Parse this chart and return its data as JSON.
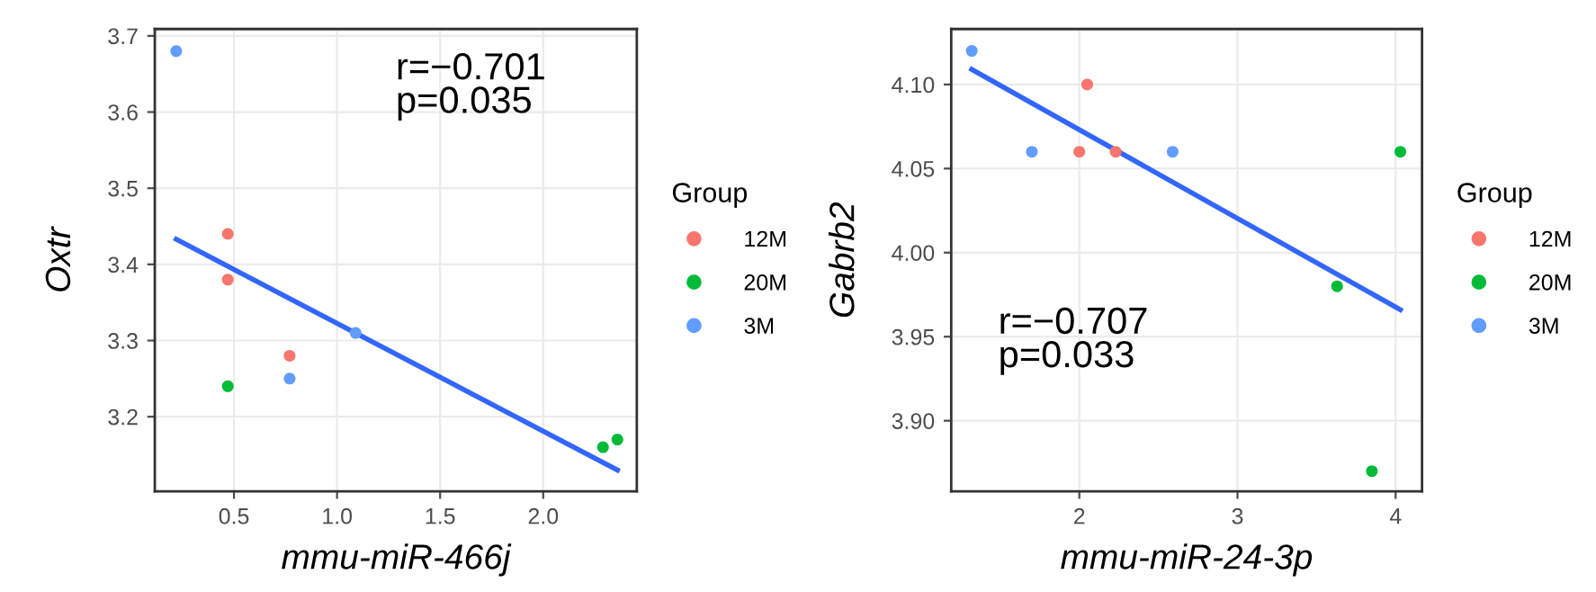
{
  "chart_data": [
    {
      "type": "scatter",
      "xlabel": "mmu-miR-466j",
      "ylabel": "Oxtr",
      "legend_title": "Group",
      "legend": "right",
      "grid": true,
      "marker": "circle",
      "xlim": [
        0.116,
        2.454
      ],
      "ylim": [
        3.102,
        3.709
      ],
      "xticks": [
        0.5,
        {
          "value": 1,
          "label": "1.0"
        },
        1.5,
        {
          "value": 2,
          "label": "2.0"
        }
      ],
      "yticks": [
        3.2,
        3.3,
        3.4,
        3.5,
        3.6,
        3.7
      ],
      "annotations": [
        "r=−0.701\np=0.035"
      ],
      "series": [
        {
          "name": "12M",
          "color": "#f8766d",
          "x": [
            0.47,
            0.47,
            0.77
          ],
          "values": [
            3.44,
            3.38,
            3.28
          ]
        },
        {
          "name": "20M",
          "color": "#00ba38",
          "x": [
            0.47,
            2.29,
            2.36
          ],
          "values": [
            3.24,
            3.16,
            3.17
          ]
        },
        {
          "name": "3M",
          "color": "#619cff",
          "x": [
            0.22,
            0.77,
            1.09
          ],
          "values": [
            3.68,
            3.25,
            3.31
          ]
        },
        {
          "type": "line",
          "marker": "none",
          "color": "#3366ff",
          "x": [
            0.22,
            2.36
          ],
          "values": [
            3.433,
            3.13
          ]
        }
      ]
    },
    {
      "type": "scatter",
      "xlabel": "mmu-miR-24-3p",
      "ylabel": "Gabrb2",
      "legend_title": "Group",
      "legend": "right",
      "grid": true,
      "marker": "circle",
      "xlim": [
        1.19,
        4.167
      ],
      "ylim": [
        3.858,
        4.133
      ],
      "xticks": [
        2,
        3,
        4
      ],
      "yticks": [
        {
          "value": 3.9,
          "label": "3.90"
        },
        {
          "value": 3.95,
          "label": "3.95"
        },
        {
          "value": 4.0,
          "label": "4.00"
        },
        {
          "value": 4.05,
          "label": "4.05"
        },
        {
          "value": 4.1,
          "label": "4.10"
        }
      ],
      "annotations": [
        "r=−0.707\np=0.033"
      ],
      "series": [
        {
          "name": "12M",
          "color": "#f8766d",
          "x": [
            2.05,
            2.0,
            2.23
          ],
          "values": [
            4.1,
            4.06,
            4.06
          ]
        },
        {
          "name": "20M",
          "color": "#00ba38",
          "x": [
            4.03,
            3.63,
            3.85
          ],
          "values": [
            4.06,
            3.98,
            3.87
          ]
        },
        {
          "name": "3M",
          "color": "#619cff",
          "x": [
            1.32,
            1.7,
            2.59
          ],
          "values": [
            4.12,
            4.06,
            4.06
          ]
        },
        {
          "type": "line",
          "marker": "none",
          "color": "#3366ff",
          "x": [
            1.32,
            4.03
          ],
          "values": [
            4.109,
            3.966
          ]
        }
      ]
    }
  ]
}
